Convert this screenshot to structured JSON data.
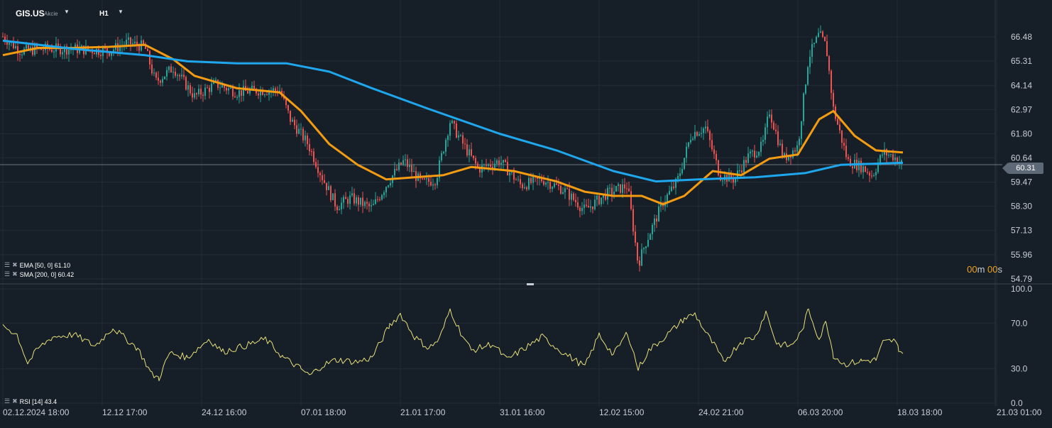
{
  "header": {
    "symbol": "GIS.US",
    "type": "Akcie",
    "timeframe": "H1"
  },
  "indicators": {
    "ema_label": "EMA [50, 0] 61.10",
    "sma_label": "SMA [200, 0] 60.42",
    "rsi_label": "RSI [14] 43.4"
  },
  "timer": {
    "value1": "00",
    "unit1": "m",
    "value2": " 00",
    "unit2": "s"
  },
  "current_price": "60.31",
  "colors": {
    "background": "#161e27",
    "grid": "#232c36",
    "up_candle": "#26a69a",
    "down_candle": "#ef5350",
    "ema": "#f39c12",
    "sma": "#1ea7ec",
    "rsi": "#e8e07a",
    "axis_text": "#c8ced6"
  },
  "chart_data": [
    {
      "type": "candlestick",
      "title": "GIS.US H1",
      "y_ticks": [
        "66.48",
        "65.31",
        "64.14",
        "62.97",
        "61.80",
        "60.64",
        "59.47",
        "58.30",
        "57.13",
        "55.96",
        "54.79"
      ],
      "ylim": [
        54.79,
        67.2
      ],
      "x_ticks": [
        "02.12.2024",
        "18:00",
        "12.12",
        "17:00",
        "24.12",
        "16:00",
        "07.01",
        "18:00",
        "21.01",
        "17:00",
        "31.01",
        "16:00",
        "12.02",
        "15:00",
        "24.02",
        "21:00",
        "06.03",
        "20:00",
        "18.03",
        "18:00",
        "21.03",
        "01:00"
      ],
      "x_tick_labels": [
        "02.12.2024 18:00",
        "12.12 17:00",
        "24.12 16:00",
        "07.01 18:00",
        "21.01 17:00",
        "31.01 16:00",
        "12.02 15:00",
        "24.02 21:00",
        "06.03 20:00",
        "18.03 18:00",
        "21.03 01:00"
      ],
      "close_anchors": [
        [
          0,
          66.5
        ],
        [
          25,
          65.8
        ],
        [
          60,
          65.9
        ],
        [
          100,
          65.9
        ],
        [
          150,
          65.8
        ],
        [
          175,
          66.2
        ],
        [
          200,
          66.0
        ],
        [
          215,
          64.3
        ],
        [
          240,
          65.0
        ],
        [
          270,
          63.6
        ],
        [
          300,
          64.2
        ],
        [
          330,
          63.8
        ],
        [
          360,
          63.9
        ],
        [
          390,
          63.9
        ],
        [
          405,
          62.5
        ],
        [
          430,
          61.3
        ],
        [
          450,
          59.7
        ],
        [
          470,
          58.3
        ],
        [
          490,
          58.7
        ],
        [
          520,
          58.2
        ],
        [
          545,
          59.6
        ],
        [
          565,
          60.5
        ],
        [
          590,
          59.4
        ],
        [
          610,
          59.6
        ],
        [
          630,
          62.4
        ],
        [
          650,
          61.2
        ],
        [
          670,
          60.1
        ],
        [
          700,
          60.5
        ],
        [
          730,
          59.3
        ],
        [
          760,
          59.6
        ],
        [
          790,
          59.1
        ],
        [
          820,
          58.1
        ],
        [
          850,
          58.9
        ],
        [
          880,
          59.3
        ],
        [
          895,
          55.5
        ],
        [
          905,
          56.5
        ],
        [
          930,
          58.5
        ],
        [
          950,
          59.5
        ],
        [
          970,
          61.8
        ],
        [
          990,
          62.1
        ],
        [
          1010,
          59.8
        ],
        [
          1030,
          59.6
        ],
        [
          1050,
          60.7
        ],
        [
          1070,
          61.2
        ],
        [
          1080,
          62.9
        ],
        [
          1100,
          60.6
        ],
        [
          1120,
          61.2
        ],
        [
          1135,
          65.5
        ],
        [
          1150,
          66.6
        ],
        [
          1160,
          66.0
        ],
        [
          1170,
          63.0
        ],
        [
          1190,
          60.5
        ],
        [
          1210,
          60.2
        ],
        [
          1225,
          59.8
        ],
        [
          1240,
          60.9
        ],
        [
          1255,
          60.7
        ],
        [
          1268,
          60.31
        ]
      ],
      "series": [
        {
          "name": "EMA [50, 0]",
          "points": [
            [
              0,
              65.6
            ],
            [
              50,
              65.95
            ],
            [
              100,
              65.95
            ],
            [
              150,
              66.0
            ],
            [
              200,
              66.1
            ],
            [
              240,
              65.4
            ],
            [
              270,
              64.6
            ],
            [
              330,
              64.0
            ],
            [
              390,
              63.8
            ],
            [
              420,
              62.9
            ],
            [
              460,
              61.3
            ],
            [
              500,
              60.3
            ],
            [
              540,
              59.6
            ],
            [
              580,
              59.7
            ],
            [
              620,
              59.8
            ],
            [
              660,
              60.2
            ],
            [
              720,
              60.0
            ],
            [
              780,
              59.5
            ],
            [
              820,
              59.0
            ],
            [
              860,
              58.8
            ],
            [
              900,
              58.8
            ],
            [
              930,
              58.4
            ],
            [
              960,
              58.8
            ],
            [
              1000,
              60.0
            ],
            [
              1040,
              59.8
            ],
            [
              1080,
              60.6
            ],
            [
              1120,
              60.8
            ],
            [
              1150,
              62.5
            ],
            [
              1170,
              62.9
            ],
            [
              1200,
              61.7
            ],
            [
              1230,
              61.0
            ],
            [
              1268,
              60.9
            ]
          ]
        },
        {
          "name": "SMA [200, 0]",
          "points": [
            [
              0,
              66.3
            ],
            [
              100,
              65.9
            ],
            [
              200,
              65.6
            ],
            [
              260,
              65.3
            ],
            [
              330,
              65.2
            ],
            [
              400,
              65.2
            ],
            [
              460,
              64.8
            ],
            [
              520,
              64.0
            ],
            [
              600,
              63.0
            ],
            [
              700,
              61.8
            ],
            [
              780,
              61.0
            ],
            [
              860,
              60.0
            ],
            [
              920,
              59.5
            ],
            [
              980,
              59.6
            ],
            [
              1060,
              59.7
            ],
            [
              1130,
              59.9
            ],
            [
              1180,
              60.3
            ],
            [
              1268,
              60.4
            ]
          ]
        }
      ]
    },
    {
      "type": "line",
      "title": "RSI [14]",
      "y_ticks": [
        "100.0",
        "70.0",
        "30.0",
        "0.0"
      ],
      "ylim": [
        0,
        100
      ],
      "series": [
        {
          "name": "RSI [14]",
          "points": [
            [
              0,
              68
            ],
            [
              20,
              60
            ],
            [
              35,
              35
            ],
            [
              50,
              48
            ],
            [
              70,
              58
            ],
            [
              100,
              60
            ],
            [
              130,
              50
            ],
            [
              155,
              66
            ],
            [
              170,
              58
            ],
            [
              190,
              48
            ],
            [
              210,
              25
            ],
            [
              220,
              22
            ],
            [
              235,
              44
            ],
            [
              260,
              40
            ],
            [
              290,
              56
            ],
            [
              310,
              45
            ],
            [
              340,
              50
            ],
            [
              370,
              56
            ],
            [
              395,
              40
            ],
            [
              420,
              30
            ],
            [
              432,
              24
            ],
            [
              450,
              33
            ],
            [
              470,
              38
            ],
            [
              500,
              36
            ],
            [
              520,
              40
            ],
            [
              545,
              68
            ],
            [
              560,
              78
            ],
            [
              580,
              58
            ],
            [
              600,
              48
            ],
            [
              615,
              56
            ],
            [
              630,
              82
            ],
            [
              645,
              62
            ],
            [
              660,
              46
            ],
            [
              690,
              52
            ],
            [
              710,
              38
            ],
            [
              740,
              50
            ],
            [
              760,
              58
            ],
            [
              790,
              44
            ],
            [
              820,
              32
            ],
            [
              840,
              60
            ],
            [
              860,
              42
            ],
            [
              880,
              62
            ],
            [
              895,
              30
            ],
            [
              910,
              46
            ],
            [
              940,
              62
            ],
            [
              960,
              74
            ],
            [
              975,
              78
            ],
            [
              990,
              62
            ],
            [
              1005,
              48
            ],
            [
              1015,
              36
            ],
            [
              1040,
              54
            ],
            [
              1060,
              58
            ],
            [
              1075,
              80
            ],
            [
              1090,
              52
            ],
            [
              1110,
              50
            ],
            [
              1125,
              62
            ],
            [
              1135,
              82
            ],
            [
              1150,
              56
            ],
            [
              1160,
              72
            ],
            [
              1170,
              42
            ],
            [
              1185,
              34
            ],
            [
              1210,
              37
            ],
            [
              1230,
              38
            ],
            [
              1240,
              53
            ],
            [
              1255,
              55
            ],
            [
              1262,
              48
            ],
            [
              1268,
              43.4
            ]
          ]
        }
      ]
    }
  ]
}
